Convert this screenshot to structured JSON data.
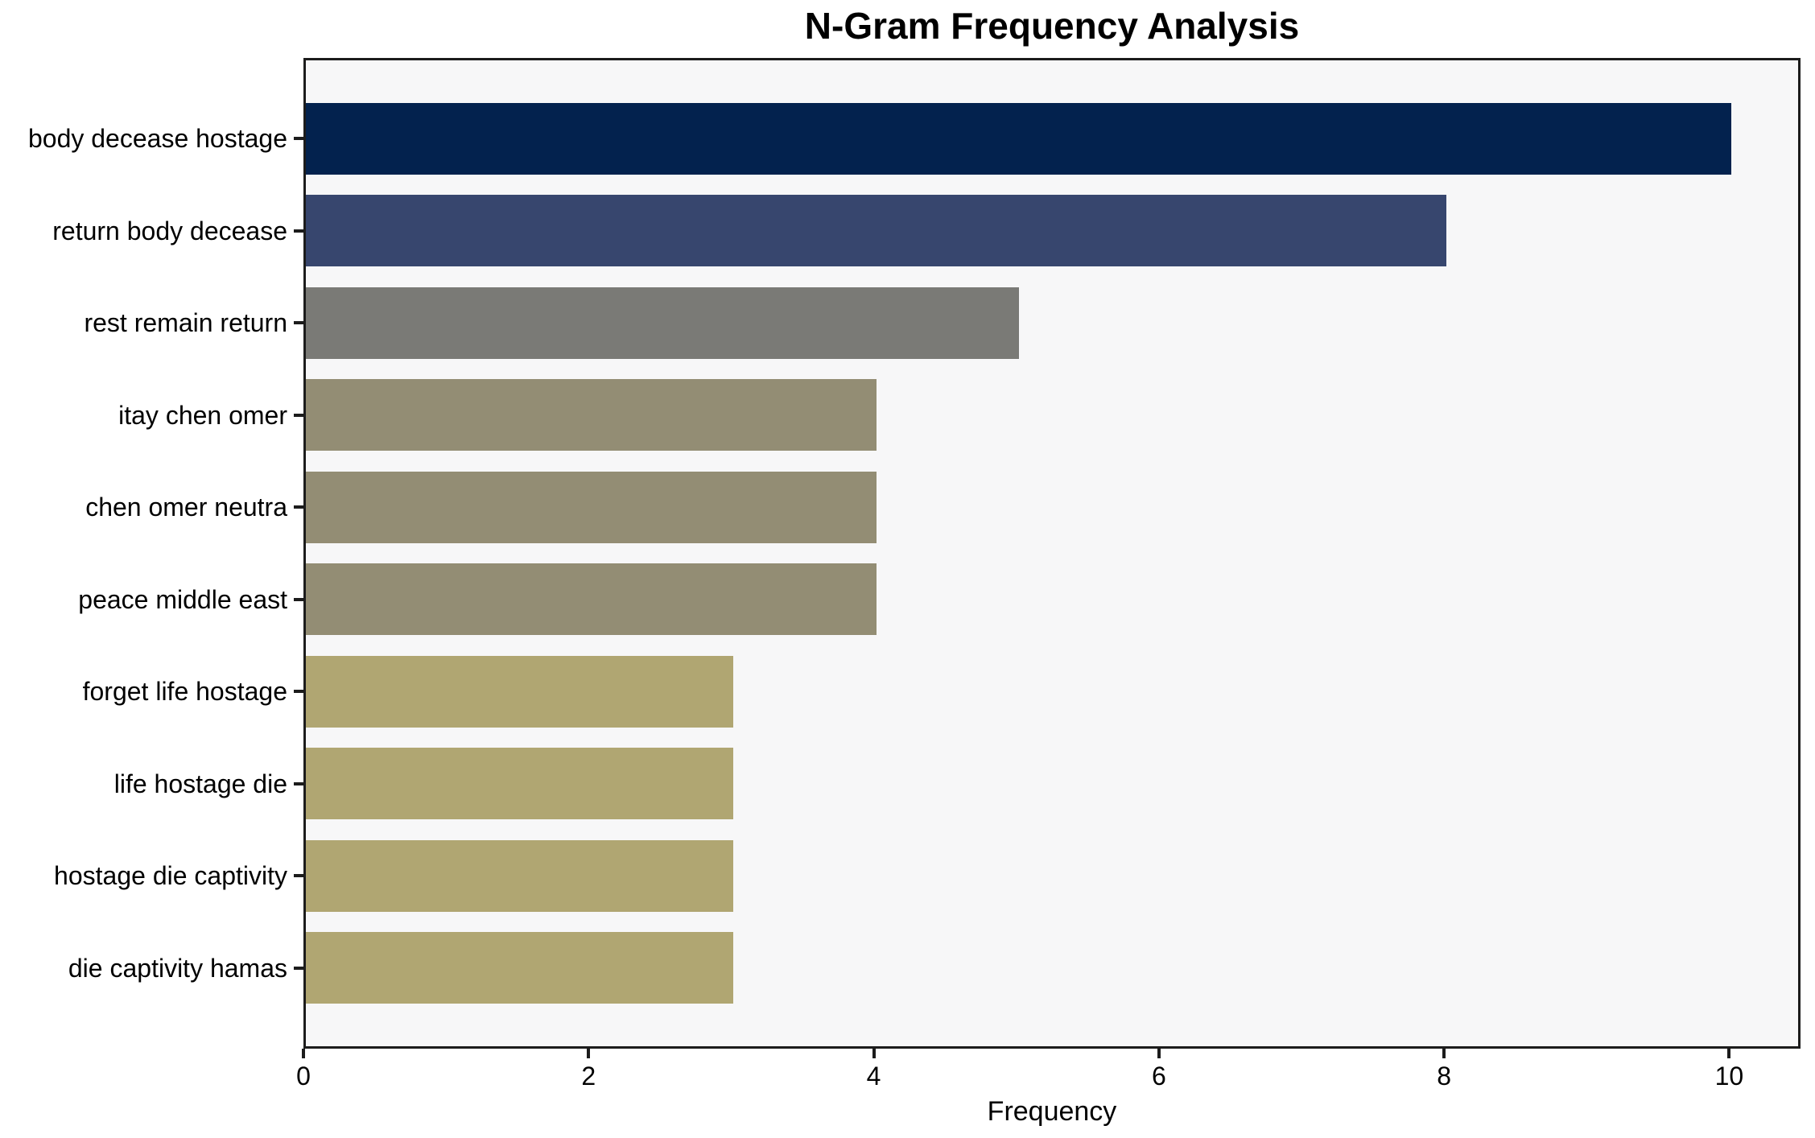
{
  "chart_data": {
    "type": "bar",
    "orientation": "horizontal",
    "title": "N-Gram Frequency Analysis",
    "xlabel": "Frequency",
    "ylabel": "",
    "categories": [
      "body decease hostage",
      "return body decease",
      "rest remain return",
      "itay chen omer",
      "chen omer neutra",
      "peace middle east",
      "forget life hostage",
      "life hostage die",
      "hostage die captivity",
      "die captivity hamas"
    ],
    "values": [
      10,
      8,
      5,
      4,
      4,
      4,
      3,
      3,
      3,
      3
    ],
    "bar_colors": [
      "#03224e",
      "#37466e",
      "#7a7a76",
      "#938d74",
      "#938d74",
      "#938d74",
      "#b0a672",
      "#b0a672",
      "#b0a672",
      "#b0a672"
    ],
    "xlim": [
      0,
      10.5
    ],
    "xticks": [
      0,
      2,
      4,
      6,
      8,
      10
    ],
    "grid": false,
    "legend": "none",
    "plot_background": "#f7f7f8",
    "figure_background": "#ffffff",
    "spine_color": "#1c1c1c",
    "text_color": "#000000"
  }
}
